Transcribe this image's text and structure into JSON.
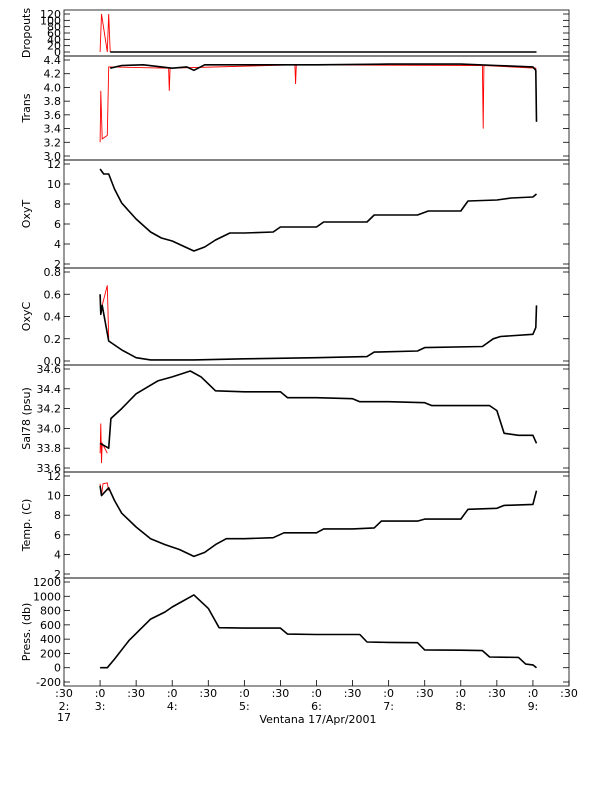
{
  "chart_data": {
    "type": "line",
    "xlabel": "Ventana 17/Apr/2001",
    "x_ticks": [
      {
        "x": 2.5,
        "top": ":30",
        "mid": "2:",
        "bot": "17"
      },
      {
        "x": 3.0,
        "top": ":0",
        "mid": "3:"
      },
      {
        "x": 3.5,
        "top": ":30"
      },
      {
        "x": 4.0,
        "top": ":0",
        "mid": "4:"
      },
      {
        "x": 4.5,
        "top": ":30"
      },
      {
        "x": 5.0,
        "top": ":0",
        "mid": "5:"
      },
      {
        "x": 5.5,
        "top": ":30"
      },
      {
        "x": 6.0,
        "top": ":0",
        "mid": "6:"
      },
      {
        "x": 6.5,
        "top": ":30"
      },
      {
        "x": 7.0,
        "top": ":0",
        "mid": "7:"
      },
      {
        "x": 7.5,
        "top": ":30"
      },
      {
        "x": 8.0,
        "top": ":0",
        "mid": "8:"
      },
      {
        "x": 8.5,
        "top": ":30"
      },
      {
        "x": 9.0,
        "top": ":0",
        "mid": "9:"
      },
      {
        "x": 9.5,
        "top": ":30"
      }
    ],
    "xlim": [
      2.5,
      9.5
    ],
    "x_unit": "hours of day",
    "series_colors": {
      "raw": "#ff0000",
      "filtered": "#000000"
    },
    "panels": [
      {
        "ylabel": "Dropouts",
        "ylim": [
          0,
          120
        ],
        "yticks": [
          0,
          20,
          40,
          60,
          80,
          100,
          120
        ],
        "ytick_labels": [
          "0",
          "20",
          "40",
          "60",
          "80",
          "100",
          "120"
        ],
        "raw_points": [
          [
            3.0,
            0
          ],
          [
            3.02,
            120
          ],
          [
            3.1,
            0
          ],
          [
            3.12,
            120
          ],
          [
            3.14,
            0
          ]
        ],
        "line_points": [
          [
            3.14,
            0
          ],
          [
            9.05,
            0
          ]
        ]
      },
      {
        "ylabel": "Trans",
        "ylim": [
          3.0,
          4.4
        ],
        "yticks": [
          3.0,
          3.2,
          3.4,
          3.6,
          3.8,
          4.0,
          4.2,
          4.4
        ],
        "ytick_labels": [
          "3.0",
          "3.2",
          "3.4",
          "3.6",
          "3.8",
          "4.0",
          "4.2",
          "4.4"
        ],
        "raw_points": [
          [
            3.0,
            3.2
          ],
          [
            3.01,
            3.95
          ],
          [
            3.03,
            3.25
          ],
          [
            3.1,
            3.3
          ],
          [
            3.12,
            4.3
          ],
          [
            3.14,
            4.3
          ],
          [
            3.95,
            4.28
          ],
          [
            3.96,
            3.95
          ],
          [
            3.97,
            4.28
          ],
          [
            5.7,
            4.33
          ],
          [
            5.71,
            4.05
          ],
          [
            5.72,
            4.33
          ],
          [
            8.3,
            4.32
          ],
          [
            8.31,
            3.4
          ],
          [
            8.32,
            4.32
          ],
          [
            9.04,
            4.28
          ],
          [
            9.05,
            3.5
          ]
        ],
        "line_points": [
          [
            3.14,
            4.28
          ],
          [
            3.3,
            4.32
          ],
          [
            3.6,
            4.33
          ],
          [
            4.0,
            4.28
          ],
          [
            4.2,
            4.3
          ],
          [
            4.3,
            4.25
          ],
          [
            4.45,
            4.33
          ],
          [
            5.0,
            4.33
          ],
          [
            6.0,
            4.33
          ],
          [
            7.0,
            4.34
          ],
          [
            8.0,
            4.34
          ],
          [
            8.5,
            4.32
          ],
          [
            9.0,
            4.3
          ],
          [
            9.04,
            4.25
          ],
          [
            9.05,
            3.5
          ]
        ]
      },
      {
        "ylabel": "OxyT",
        "ylim": [
          2,
          12
        ],
        "yticks": [
          2,
          4,
          6,
          8,
          10,
          12
        ],
        "ytick_labels": [
          "2",
          "4",
          "6",
          "8",
          "10",
          "12"
        ],
        "raw_points": [],
        "line_points": [
          [
            3.0,
            11.5
          ],
          [
            3.05,
            11.0
          ],
          [
            3.12,
            11.0
          ],
          [
            3.2,
            9.5
          ],
          [
            3.3,
            8.1
          ],
          [
            3.5,
            6.5
          ],
          [
            3.7,
            5.2
          ],
          [
            3.85,
            4.6
          ],
          [
            4.0,
            4.3
          ],
          [
            4.15,
            3.8
          ],
          [
            4.3,
            3.3
          ],
          [
            4.45,
            3.7
          ],
          [
            4.6,
            4.4
          ],
          [
            4.8,
            5.1
          ],
          [
            5.0,
            5.1
          ],
          [
            5.4,
            5.2
          ],
          [
            5.5,
            5.7
          ],
          [
            5.8,
            5.7
          ],
          [
            6.0,
            5.7
          ],
          [
            6.1,
            6.2
          ],
          [
            6.4,
            6.2
          ],
          [
            6.7,
            6.2
          ],
          [
            6.8,
            6.9
          ],
          [
            7.2,
            6.9
          ],
          [
            7.4,
            6.9
          ],
          [
            7.55,
            7.3
          ],
          [
            8.0,
            7.3
          ],
          [
            8.1,
            8.3
          ],
          [
            8.5,
            8.4
          ],
          [
            8.7,
            8.6
          ],
          [
            9.0,
            8.7
          ],
          [
            9.05,
            9.0
          ]
        ]
      },
      {
        "ylabel": "OxyC",
        "ylim": [
          0.0,
          0.8
        ],
        "yticks": [
          0.0,
          0.2,
          0.4,
          0.6,
          0.8
        ],
        "ytick_labels": [
          "0.0",
          "0.2",
          "0.4",
          "0.6",
          "0.8"
        ],
        "raw_points": [
          [
            3.0,
            0.6
          ],
          [
            3.01,
            0.42
          ],
          [
            3.03,
            0.5
          ],
          [
            3.1,
            0.68
          ],
          [
            3.12,
            0.2
          ]
        ],
        "line_points": [
          [
            3.0,
            0.6
          ],
          [
            3.01,
            0.42
          ],
          [
            3.03,
            0.5
          ],
          [
            3.12,
            0.18
          ],
          [
            3.3,
            0.1
          ],
          [
            3.5,
            0.03
          ],
          [
            3.7,
            0.01
          ],
          [
            4.3,
            0.01
          ],
          [
            5.0,
            0.02
          ],
          [
            6.0,
            0.03
          ],
          [
            6.7,
            0.04
          ],
          [
            6.8,
            0.08
          ],
          [
            7.4,
            0.09
          ],
          [
            7.5,
            0.12
          ],
          [
            8.3,
            0.13
          ],
          [
            8.45,
            0.2
          ],
          [
            8.55,
            0.22
          ],
          [
            9.0,
            0.24
          ],
          [
            9.04,
            0.3
          ],
          [
            9.05,
            0.5
          ]
        ]
      },
      {
        "ylabel": "Sal78 (psu)",
        "ylim": [
          33.6,
          34.6
        ],
        "yticks": [
          33.6,
          33.8,
          34.0,
          34.2,
          34.4,
          34.6
        ],
        "ytick_labels": [
          "33.6",
          "33.8",
          "34.0",
          "34.2",
          "34.4",
          "34.6"
        ],
        "raw_points": [
          [
            3.0,
            33.75
          ],
          [
            3.01,
            34.05
          ],
          [
            3.02,
            33.65
          ],
          [
            3.03,
            33.85
          ],
          [
            3.1,
            33.75
          ]
        ],
        "line_points": [
          [
            3.0,
            33.85
          ],
          [
            3.12,
            33.8
          ],
          [
            3.15,
            34.1
          ],
          [
            3.3,
            34.2
          ],
          [
            3.5,
            34.35
          ],
          [
            3.8,
            34.48
          ],
          [
            4.0,
            34.52
          ],
          [
            4.25,
            34.58
          ],
          [
            4.4,
            34.52
          ],
          [
            4.6,
            34.38
          ],
          [
            5.0,
            34.37
          ],
          [
            5.5,
            34.37
          ],
          [
            5.6,
            34.31
          ],
          [
            6.0,
            34.31
          ],
          [
            6.5,
            34.3
          ],
          [
            6.6,
            34.27
          ],
          [
            7.0,
            34.27
          ],
          [
            7.5,
            34.26
          ],
          [
            7.6,
            34.23
          ],
          [
            8.0,
            34.23
          ],
          [
            8.4,
            34.23
          ],
          [
            8.5,
            34.18
          ],
          [
            8.6,
            33.95
          ],
          [
            8.8,
            33.93
          ],
          [
            9.0,
            33.93
          ],
          [
            9.05,
            33.85
          ]
        ]
      },
      {
        "ylabel": "Temp. (C)",
        "ylim": [
          2,
          12
        ],
        "yticks": [
          2,
          4,
          6,
          8,
          10,
          12
        ],
        "ytick_labels": [
          "2",
          "4",
          "6",
          "8",
          "10",
          "12"
        ],
        "raw_points": [
          [
            3.0,
            11.2
          ],
          [
            3.02,
            10.0
          ],
          [
            3.04,
            11.2
          ],
          [
            3.1,
            11.3
          ],
          [
            3.12,
            10.5
          ]
        ],
        "line_points": [
          [
            3.0,
            11.0
          ],
          [
            3.02,
            10.0
          ],
          [
            3.12,
            10.8
          ],
          [
            3.2,
            9.5
          ],
          [
            3.3,
            8.2
          ],
          [
            3.5,
            6.8
          ],
          [
            3.7,
            5.6
          ],
          [
            3.9,
            5.0
          ],
          [
            4.1,
            4.5
          ],
          [
            4.3,
            3.8
          ],
          [
            4.45,
            4.2
          ],
          [
            4.6,
            5.0
          ],
          [
            4.75,
            5.6
          ],
          [
            5.0,
            5.6
          ],
          [
            5.4,
            5.7
          ],
          [
            5.55,
            6.2
          ],
          [
            6.0,
            6.2
          ],
          [
            6.1,
            6.6
          ],
          [
            6.5,
            6.6
          ],
          [
            6.8,
            6.7
          ],
          [
            6.9,
            7.4
          ],
          [
            7.4,
            7.4
          ],
          [
            7.5,
            7.6
          ],
          [
            8.0,
            7.6
          ],
          [
            8.1,
            8.6
          ],
          [
            8.5,
            8.7
          ],
          [
            8.6,
            9.0
          ],
          [
            9.0,
            9.1
          ],
          [
            9.05,
            10.5
          ]
        ]
      },
      {
        "ylabel": "Press. (db)",
        "ylim": [
          -200,
          1200
        ],
        "yticks": [
          -200,
          0,
          200,
          400,
          600,
          800,
          1000,
          1200
        ],
        "ytick_labels": [
          "-200",
          "0",
          "200",
          "400",
          "600",
          "800",
          "1000",
          "1200"
        ],
        "raw_points": [],
        "line_points": [
          [
            3.0,
            0
          ],
          [
            3.1,
            0
          ],
          [
            3.2,
            120
          ],
          [
            3.4,
            380
          ],
          [
            3.7,
            680
          ],
          [
            3.9,
            780
          ],
          [
            4.0,
            850
          ],
          [
            4.3,
            1020
          ],
          [
            4.5,
            830
          ],
          [
            4.65,
            560
          ],
          [
            5.0,
            555
          ],
          [
            5.5,
            555
          ],
          [
            5.6,
            470
          ],
          [
            6.0,
            465
          ],
          [
            6.6,
            465
          ],
          [
            6.7,
            360
          ],
          [
            7.0,
            355
          ],
          [
            7.4,
            350
          ],
          [
            7.5,
            250
          ],
          [
            8.0,
            245
          ],
          [
            8.3,
            240
          ],
          [
            8.4,
            150
          ],
          [
            8.8,
            145
          ],
          [
            8.9,
            50
          ],
          [
            9.0,
            40
          ],
          [
            9.05,
            0
          ]
        ]
      }
    ]
  }
}
